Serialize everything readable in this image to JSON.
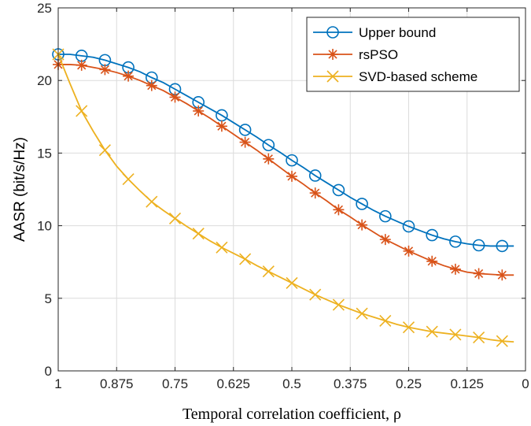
{
  "chart_data": {
    "type": "line",
    "xlabel": "Temporal correlation coefficient, ρ",
    "ylabel": "AASR (bit/s/Hz)",
    "xlim": [
      1,
      0
    ],
    "ylim": [
      0,
      25
    ],
    "x_reversed": true,
    "grid": true,
    "legend_position": "top-right",
    "x_ticks": [
      1,
      0.875,
      0.75,
      0.625,
      0.5,
      0.375,
      0.25,
      0.125,
      0
    ],
    "x_tick_labels": [
      "1",
      "0.875",
      "0.75",
      "0.625",
      "0.5",
      "0.375",
      "0.25",
      "0.125",
      "0"
    ],
    "y_ticks": [
      0,
      5,
      10,
      15,
      20,
      25
    ],
    "y_tick_labels": [
      "0",
      "5",
      "10",
      "15",
      "20",
      "25"
    ],
    "x": [
      1,
      0.975,
      0.95,
      0.925,
      0.9,
      0.875,
      0.85,
      0.825,
      0.8,
      0.775,
      0.75,
      0.725,
      0.7,
      0.675,
      0.65,
      0.625,
      0.6,
      0.575,
      0.55,
      0.525,
      0.5,
      0.475,
      0.45,
      0.425,
      0.4,
      0.375,
      0.35,
      0.325,
      0.3,
      0.275,
      0.25,
      0.225,
      0.2,
      0.175,
      0.15,
      0.125,
      0.1,
      0.075,
      0.05,
      0.025
    ],
    "series": [
      {
        "name": "Upper bound",
        "color": "#0072BD",
        "marker": "circle",
        "marker_every": 2,
        "values": [
          21.8,
          21.8,
          21.7,
          21.6,
          21.4,
          21.15,
          20.9,
          20.6,
          20.2,
          19.85,
          19.4,
          18.95,
          18.5,
          18.05,
          17.6,
          17.1,
          16.6,
          16.1,
          15.55,
          15.05,
          14.5,
          14.0,
          13.45,
          12.95,
          12.45,
          11.95,
          11.5,
          11.05,
          10.65,
          10.3,
          9.95,
          9.65,
          9.35,
          9.1,
          8.9,
          8.75,
          8.65,
          8.6,
          8.6,
          8.6
        ]
      },
      {
        "name": "rsPSO",
        "color": "#D95319",
        "marker": "asterisk",
        "marker_every": 2,
        "values": [
          21.1,
          21.1,
          21.05,
          20.9,
          20.75,
          20.55,
          20.3,
          20.0,
          19.65,
          19.3,
          18.85,
          18.4,
          17.9,
          17.4,
          16.85,
          16.3,
          15.75,
          15.2,
          14.6,
          14.0,
          13.4,
          12.85,
          12.25,
          11.7,
          11.1,
          10.6,
          10.05,
          9.55,
          9.05,
          8.65,
          8.25,
          7.9,
          7.55,
          7.25,
          7.0,
          6.8,
          6.7,
          6.65,
          6.6,
          6.6
        ]
      },
      {
        "name": "SVD-based scheme",
        "color": "#EDB120",
        "marker": "x",
        "marker_every": 2,
        "values": [
          21.8,
          19.8,
          17.9,
          16.5,
          15.2,
          14.1,
          13.2,
          12.4,
          11.65,
          11.05,
          10.5,
          9.95,
          9.45,
          8.95,
          8.5,
          8.1,
          7.7,
          7.25,
          6.85,
          6.45,
          6.05,
          5.65,
          5.25,
          4.9,
          4.55,
          4.25,
          3.95,
          3.7,
          3.45,
          3.2,
          3.0,
          2.85,
          2.7,
          2.6,
          2.5,
          2.4,
          2.3,
          2.15,
          2.05,
          2.0
        ]
      }
    ]
  }
}
